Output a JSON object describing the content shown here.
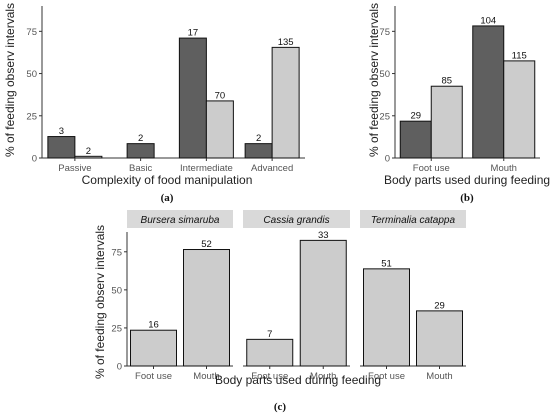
{
  "colors": {
    "dark": "#5f5f5f",
    "light": "#cccccc",
    "bar_edge": "#111111",
    "strip_bg": "#d9d9d9",
    "axis": "#333333"
  },
  "chart_data": [
    {
      "type": "bar",
      "id": "a",
      "caption": "(a)",
      "xlabel": "Complexity of food manipulation",
      "ylabel": "% of feeding observ intervals",
      "ylim": [
        0,
        90
      ],
      "yticks": [
        "0",
        "25",
        "50",
        "75"
      ],
      "categories": [
        "Passive",
        "Basic",
        "Intermediate",
        "Advanced"
      ],
      "series": [
        {
          "color": "dark",
          "values": [
            12.7,
            null,
            71,
            8.5
          ],
          "labels": [
            "3",
            "2",
            "17",
            "2"
          ]
        },
        {
          "color": "light",
          "values": [
            1,
            null,
            33.8,
            65.5
          ],
          "labels": [
            "2",
            "",
            "70",
            "135"
          ]
        }
      ],
      "single_bars": [
        {
          "category_index": 1,
          "color": "dark",
          "value": 8.5,
          "label": "2"
        }
      ],
      "grid": false,
      "legend": "none"
    },
    {
      "type": "bar",
      "id": "b",
      "caption": "(b)",
      "xlabel": "Body parts used during feeding",
      "ylabel": "% of feeding observ intervals",
      "ylim": [
        0,
        90
      ],
      "yticks": [
        "0",
        "25",
        "50",
        "75"
      ],
      "categories": [
        "Foot use",
        "Mouth"
      ],
      "series": [
        {
          "color": "dark",
          "values": [
            21.8,
            78.2
          ],
          "labels": [
            "29",
            "104"
          ]
        },
        {
          "color": "light",
          "values": [
            42.5,
            57.5
          ],
          "labels": [
            "85",
            "115"
          ]
        }
      ],
      "grid": false,
      "legend": "none"
    },
    {
      "type": "bar",
      "id": "c",
      "caption": "(c)",
      "xlabel": "Body parts used during feeding",
      "ylabel": "% of feeding observ intervals",
      "ylim": [
        0,
        88
      ],
      "yticks": [
        "0",
        "25",
        "50",
        "75"
      ],
      "categories": [
        "Foot use",
        "Mouth"
      ],
      "panels": [
        {
          "title": "Bursera simaruba",
          "values": [
            23.5,
            76.5
          ],
          "labels": [
            "16",
            "52"
          ]
        },
        {
          "title": "Cassia grandis",
          "values": [
            17.5,
            82.5
          ],
          "labels": [
            "7",
            "33"
          ]
        },
        {
          "title": "Terminalia catappa",
          "values": [
            63.8,
            36.2
          ],
          "labels": [
            "51",
            "29"
          ]
        }
      ],
      "grid": false,
      "legend": "none"
    }
  ]
}
